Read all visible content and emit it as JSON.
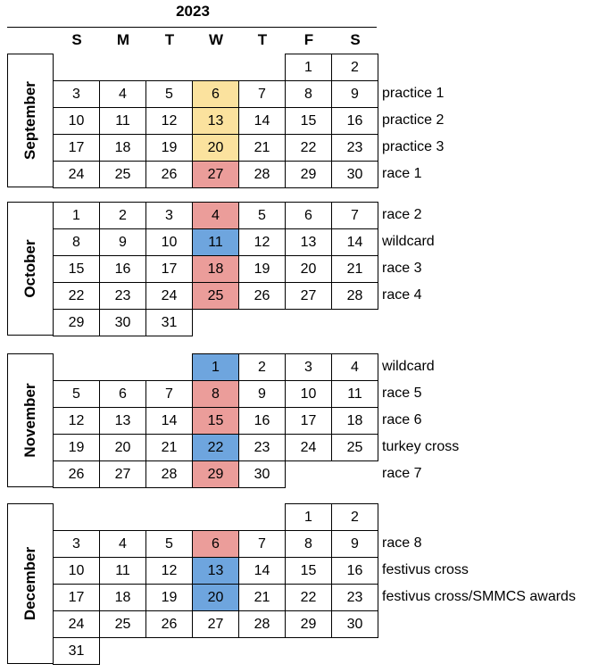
{
  "year": "2023",
  "weekdays": [
    "S",
    "M",
    "T",
    "W",
    "T",
    "F",
    "S"
  ],
  "colors": {
    "practice": "#fbe29e",
    "race": "#eb9d9a",
    "special": "#6ea5de"
  },
  "months": [
    {
      "name": "September",
      "weeks": [
        {
          "days": [
            null,
            null,
            null,
            null,
            null,
            {
              "d": "1"
            },
            {
              "d": "2"
            }
          ],
          "note": ""
        },
        {
          "days": [
            {
              "d": "3"
            },
            {
              "d": "4"
            },
            {
              "d": "5"
            },
            {
              "d": "6",
              "h": "practice"
            },
            {
              "d": "7"
            },
            {
              "d": "8"
            },
            {
              "d": "9"
            }
          ],
          "note": "practice 1"
        },
        {
          "days": [
            {
              "d": "10"
            },
            {
              "d": "11"
            },
            {
              "d": "12"
            },
            {
              "d": "13",
              "h": "practice"
            },
            {
              "d": "14"
            },
            {
              "d": "15"
            },
            {
              "d": "16"
            }
          ],
          "note": "practice 2"
        },
        {
          "days": [
            {
              "d": "17"
            },
            {
              "d": "18"
            },
            {
              "d": "19"
            },
            {
              "d": "20",
              "h": "practice"
            },
            {
              "d": "21"
            },
            {
              "d": "22"
            },
            {
              "d": "23"
            }
          ],
          "note": "practice 3"
        },
        {
          "days": [
            {
              "d": "24"
            },
            {
              "d": "25"
            },
            {
              "d": "26"
            },
            {
              "d": "27",
              "h": "race"
            },
            {
              "d": "28"
            },
            {
              "d": "29"
            },
            {
              "d": "30"
            }
          ],
          "note": "race 1"
        }
      ]
    },
    {
      "name": "October",
      "weeks": [
        {
          "days": [
            {
              "d": "1"
            },
            {
              "d": "2"
            },
            {
              "d": "3"
            },
            {
              "d": "4",
              "h": "race"
            },
            {
              "d": "5"
            },
            {
              "d": "6"
            },
            {
              "d": "7"
            }
          ],
          "note": "race 2"
        },
        {
          "days": [
            {
              "d": "8"
            },
            {
              "d": "9"
            },
            {
              "d": "10"
            },
            {
              "d": "11",
              "h": "special"
            },
            {
              "d": "12"
            },
            {
              "d": "13"
            },
            {
              "d": "14"
            }
          ],
          "note": "wildcard"
        },
        {
          "days": [
            {
              "d": "15"
            },
            {
              "d": "16"
            },
            {
              "d": "17"
            },
            {
              "d": "18",
              "h": "race"
            },
            {
              "d": "19"
            },
            {
              "d": "20"
            },
            {
              "d": "21"
            }
          ],
          "note": "race 3"
        },
        {
          "days": [
            {
              "d": "22"
            },
            {
              "d": "23"
            },
            {
              "d": "24"
            },
            {
              "d": "25",
              "h": "race"
            },
            {
              "d": "26"
            },
            {
              "d": "27"
            },
            {
              "d": "28"
            }
          ],
          "note": "race 4"
        },
        {
          "days": [
            {
              "d": "29"
            },
            {
              "d": "30"
            },
            {
              "d": "31"
            },
            null,
            null,
            null,
            null
          ],
          "note": ""
        }
      ]
    },
    {
      "name": "November",
      "weeks": [
        {
          "days": [
            null,
            null,
            null,
            {
              "d": "1",
              "h": "special"
            },
            {
              "d": "2"
            },
            {
              "d": "3"
            },
            {
              "d": "4"
            }
          ],
          "note": "wildcard"
        },
        {
          "days": [
            {
              "d": "5"
            },
            {
              "d": "6"
            },
            {
              "d": "7"
            },
            {
              "d": "8",
              "h": "race"
            },
            {
              "d": "9"
            },
            {
              "d": "10"
            },
            {
              "d": "11"
            }
          ],
          "note": "race 5"
        },
        {
          "days": [
            {
              "d": "12"
            },
            {
              "d": "13"
            },
            {
              "d": "14"
            },
            {
              "d": "15",
              "h": "race"
            },
            {
              "d": "16"
            },
            {
              "d": "17"
            },
            {
              "d": "18"
            }
          ],
          "note": "race 6"
        },
        {
          "days": [
            {
              "d": "19"
            },
            {
              "d": "20"
            },
            {
              "d": "21"
            },
            {
              "d": "22",
              "h": "special"
            },
            {
              "d": "23"
            },
            {
              "d": "24"
            },
            {
              "d": "25"
            }
          ],
          "note": "turkey cross"
        },
        {
          "days": [
            {
              "d": "26"
            },
            {
              "d": "27"
            },
            {
              "d": "28"
            },
            {
              "d": "29",
              "h": "race"
            },
            {
              "d": "30"
            },
            null,
            null
          ],
          "note": "race 7"
        }
      ]
    },
    {
      "name": "December",
      "weeks": [
        {
          "days": [
            null,
            null,
            null,
            null,
            null,
            {
              "d": "1"
            },
            {
              "d": "2"
            }
          ],
          "note": ""
        },
        {
          "days": [
            {
              "d": "3"
            },
            {
              "d": "4"
            },
            {
              "d": "5"
            },
            {
              "d": "6",
              "h": "race"
            },
            {
              "d": "7"
            },
            {
              "d": "8"
            },
            {
              "d": "9"
            }
          ],
          "note": "race 8"
        },
        {
          "days": [
            {
              "d": "10"
            },
            {
              "d": "11"
            },
            {
              "d": "12"
            },
            {
              "d": "13",
              "h": "special"
            },
            {
              "d": "14"
            },
            {
              "d": "15"
            },
            {
              "d": "16"
            }
          ],
          "note": "festivus cross"
        },
        {
          "days": [
            {
              "d": "17"
            },
            {
              "d": "18"
            },
            {
              "d": "19"
            },
            {
              "d": "20",
              "h": "special"
            },
            {
              "d": "21"
            },
            {
              "d": "22"
            },
            {
              "d": "23"
            }
          ],
          "note": "festivus cross/SMMCS awards"
        },
        {
          "days": [
            {
              "d": "24"
            },
            {
              "d": "25"
            },
            {
              "d": "26"
            },
            {
              "d": "27"
            },
            {
              "d": "28"
            },
            {
              "d": "29"
            },
            {
              "d": "30"
            }
          ],
          "note": ""
        },
        {
          "days": [
            {
              "d": "31"
            },
            null,
            null,
            null,
            null,
            null,
            null
          ],
          "note": ""
        }
      ]
    }
  ]
}
